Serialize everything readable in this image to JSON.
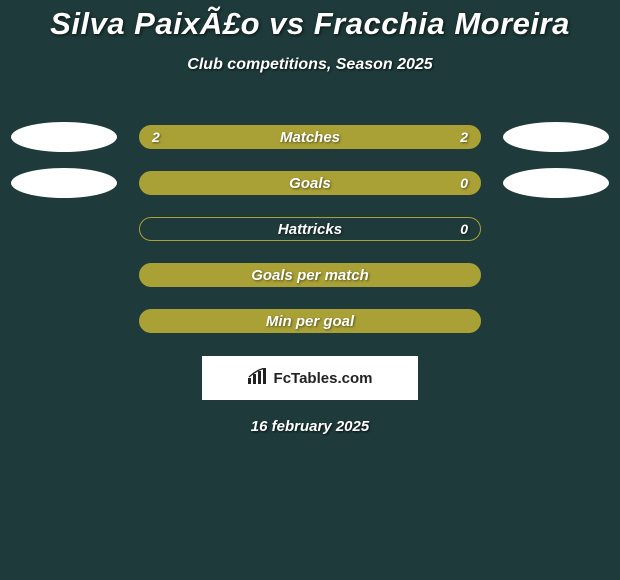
{
  "background_color": "#1e3a3a",
  "title": "Silva PaixÃ£o vs Fracchia Moreira",
  "title_color": "#ffffff",
  "title_fontsize": 31,
  "subtitle": "Club competitions, Season 2025",
  "subtitle_color": "#ffffff",
  "subtitle_fontsize": 16,
  "ellipse_color": "#ffffff",
  "bars": [
    {
      "label": "Matches",
      "left_value": "2",
      "right_value": "2",
      "fill_color": "#a9a135",
      "border_color": "#a9a135",
      "text_color": "#ffffff",
      "show_left_ellipse": true,
      "show_right_ellipse": true
    },
    {
      "label": "Goals",
      "left_value": "",
      "right_value": "0",
      "fill_color": "#a9a135",
      "border_color": "#a9a135",
      "text_color": "#ffffff",
      "show_left_ellipse": true,
      "show_right_ellipse": true
    },
    {
      "label": "Hattricks",
      "left_value": "",
      "right_value": "0",
      "fill_color": "#1e3a3a",
      "border_color": "#a9a135",
      "text_color": "#ffffff",
      "show_left_ellipse": false,
      "show_right_ellipse": false
    },
    {
      "label": "Goals per match",
      "left_value": "",
      "right_value": "",
      "fill_color": "#a9a135",
      "border_color": "#a9a135",
      "text_color": "#ffffff",
      "show_left_ellipse": false,
      "show_right_ellipse": false
    },
    {
      "label": "Min per goal",
      "left_value": "",
      "right_value": "",
      "fill_color": "#a9a135",
      "border_color": "#a9a135",
      "text_color": "#ffffff",
      "show_left_ellipse": false,
      "show_right_ellipse": false
    }
  ],
  "attribution": {
    "text": "FcTables.com",
    "text_color": "#222222",
    "background_color": "#ffffff"
  },
  "date": "16 february 2025",
  "date_color": "#ffffff"
}
